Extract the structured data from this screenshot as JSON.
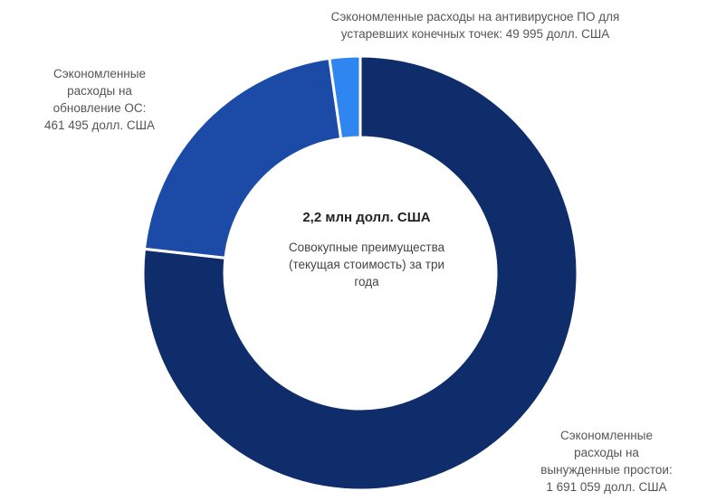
{
  "chart_data": {
    "type": "pie",
    "variant": "donut",
    "categories": [
      "Сэкономленные расходы на вынужденные простои",
      "Сэкономленные расходы на обновление ОС",
      "Сэкономленные расходы на антивирусное ПО для устаревших конечных точек"
    ],
    "values": [
      1691059,
      461495,
      49995
    ],
    "colors": [
      "#0f2c6b",
      "#1b4ba6",
      "#2f86f0"
    ],
    "center": {
      "total": "2,2 млн долл. США",
      "caption_lines": [
        "Совокупные преимущества",
        "(текущая стоимость) за три",
        "года"
      ]
    },
    "labels": {
      "antivirus": [
        "Сэкономленные расходы на антивирусное ПО для",
        "устаревших конечных точек: 49 995 долл. США"
      ],
      "os": [
        "Сэкономленные",
        "расходы на",
        "обновление ОС:",
        "461 495 долл. США"
      ],
      "downtime": [
        "Сэкономленные",
        "расходы на",
        "вынужденные простои:",
        "1 691 059 долл. США"
      ]
    }
  }
}
